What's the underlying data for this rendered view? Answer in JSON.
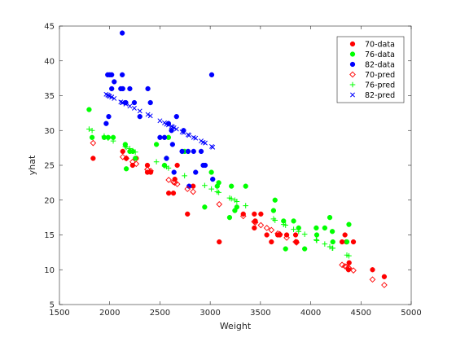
{
  "chart_data": {
    "type": "scatter",
    "title": "",
    "xlabel": "Weight",
    "ylabel": "yhat",
    "xlim": [
      1500,
      5000
    ],
    "ylim": [
      5,
      45
    ],
    "xticks": [
      1500,
      2000,
      2500,
      3000,
      3500,
      4000,
      4500,
      5000
    ],
    "yticks": [
      5,
      10,
      15,
      20,
      25,
      30,
      35,
      40,
      45
    ],
    "grid": false,
    "legend_placement": "top-right",
    "series": [
      {
        "name": "70-data",
        "marker": "filled-circle",
        "color": "#ff0000",
        "points": [
          [
            1835,
            26
          ],
          [
            2130,
            27
          ],
          [
            2165,
            26
          ],
          [
            2228,
            25
          ],
          [
            2264,
            26
          ],
          [
            2375,
            25
          ],
          [
            2375,
            24
          ],
          [
            2408,
            24
          ],
          [
            2587,
            21
          ],
          [
            2634,
            21
          ],
          [
            2648,
            23
          ],
          [
            2672,
            25
          ],
          [
            2774,
            18
          ],
          [
            2830,
            22
          ],
          [
            3090,
            14
          ],
          [
            3329,
            18
          ],
          [
            3439,
            18
          ],
          [
            3449,
            17
          ],
          [
            3439,
            16
          ],
          [
            3504,
            18
          ],
          [
            3563,
            15
          ],
          [
            3609,
            14
          ],
          [
            3672,
            15
          ],
          [
            3693,
            15
          ],
          [
            3761,
            15
          ],
          [
            3850,
            15
          ],
          [
            3859,
            14
          ],
          [
            4312,
            14
          ],
          [
            4341,
            15
          ],
          [
            4354,
            14
          ],
          [
            4376,
            10
          ],
          [
            4382,
            11
          ],
          [
            4425,
            14
          ],
          [
            4615,
            10
          ],
          [
            4732,
            9
          ]
        ]
      },
      {
        "name": "76-data",
        "marker": "filled-circle",
        "color": "#00ff00",
        "points": [
          [
            1795,
            33
          ],
          [
            1825,
            29
          ],
          [
            1945,
            29
          ],
          [
            1985,
            29
          ],
          [
            2035,
            29
          ],
          [
            2155,
            28
          ],
          [
            2165,
            24.5
          ],
          [
            2200,
            27
          ],
          [
            2230,
            27
          ],
          [
            2255,
            26
          ],
          [
            2465,
            28
          ],
          [
            2545,
            25
          ],
          [
            2565,
            26
          ],
          [
            2585,
            29
          ],
          [
            2745,
            27
          ],
          [
            2945,
            19
          ],
          [
            3012,
            24
          ],
          [
            3070,
            22
          ],
          [
            3085,
            22.5
          ],
          [
            3193,
            17.5
          ],
          [
            3211,
            22
          ],
          [
            3245,
            18.5
          ],
          [
            3265,
            19
          ],
          [
            3353,
            22
          ],
          [
            3630,
            18.5
          ],
          [
            3645,
            20
          ],
          [
            3730,
            17
          ],
          [
            3750,
            13
          ],
          [
            3830,
            17
          ],
          [
            3880,
            16
          ],
          [
            3940,
            13
          ],
          [
            4055,
            16
          ],
          [
            4060,
            15
          ],
          [
            4140,
            16
          ],
          [
            4190,
            17.5
          ],
          [
            4215,
            15.5
          ],
          [
            4220,
            14
          ],
          [
            4360,
            14
          ],
          [
            4380,
            16.5
          ]
        ]
      },
      {
        "name": "82-data",
        "marker": "filled-circle",
        "color": "#0000ff",
        "points": [
          [
            1965,
            31
          ],
          [
            1980,
            38
          ],
          [
            1990,
            32
          ],
          [
            2000,
            38
          ],
          [
            2020,
            36
          ],
          [
            2020,
            38
          ],
          [
            2045,
            37
          ],
          [
            2110,
            36
          ],
          [
            2125,
            38
          ],
          [
            2125,
            44
          ],
          [
            2130,
            36
          ],
          [
            2160,
            34
          ],
          [
            2200,
            36
          ],
          [
            2245,
            34
          ],
          [
            2300,
            32
          ],
          [
            2380,
            36
          ],
          [
            2405,
            34
          ],
          [
            2500,
            29
          ],
          [
            2545,
            29
          ],
          [
            2565,
            26
          ],
          [
            2585,
            31
          ],
          [
            2615,
            30
          ],
          [
            2625,
            28
          ],
          [
            2640,
            24
          ],
          [
            2665,
            32
          ],
          [
            2720,
            27
          ],
          [
            2735,
            30
          ],
          [
            2780,
            27
          ],
          [
            2790,
            22
          ],
          [
            2835,
            27
          ],
          [
            2855,
            24
          ],
          [
            2910,
            27
          ],
          [
            2930,
            25
          ],
          [
            2950,
            25
          ],
          [
            3015,
            38
          ],
          [
            3025,
            23
          ]
        ]
      },
      {
        "name": "70-pred",
        "marker": "open-diamond",
        "color": "#ff0000",
        "points": [
          [
            1835,
            28.2
          ],
          [
            2130,
            26.2
          ],
          [
            2165,
            26.0
          ],
          [
            2228,
            25.5
          ],
          [
            2264,
            25.2
          ],
          [
            2375,
            24.4
          ],
          [
            2375,
            24.4
          ],
          [
            2408,
            24.2
          ],
          [
            2587,
            22.9
          ],
          [
            2634,
            22.6
          ],
          [
            2648,
            22.5
          ],
          [
            2672,
            22.3
          ],
          [
            2774,
            21.6
          ],
          [
            2830,
            21.2
          ],
          [
            3090,
            19.4
          ],
          [
            3329,
            17.7
          ],
          [
            3439,
            16.9
          ],
          [
            3449,
            16.8
          ],
          [
            3439,
            16.9
          ],
          [
            3504,
            16.4
          ],
          [
            3563,
            16.0
          ],
          [
            3609,
            15.7
          ],
          [
            3672,
            15.2
          ],
          [
            3693,
            15.1
          ],
          [
            3761,
            14.6
          ],
          [
            3850,
            14.0
          ],
          [
            3859,
            13.9
          ],
          [
            4312,
            10.7
          ],
          [
            4341,
            10.5
          ],
          [
            4354,
            10.4
          ],
          [
            4376,
            10.3
          ],
          [
            4382,
            10.2
          ],
          [
            4425,
            9.9
          ],
          [
            4615,
            8.6
          ],
          [
            4732,
            7.8
          ]
        ]
      },
      {
        "name": "76-pred",
        "marker": "plus",
        "color": "#00ff00",
        "points": [
          [
            1795,
            30.2
          ],
          [
            1825,
            30.0
          ],
          [
            1945,
            29.2
          ],
          [
            1985,
            28.9
          ],
          [
            2035,
            28.5
          ],
          [
            2155,
            27.7
          ],
          [
            2165,
            27.6
          ],
          [
            2200,
            27.4
          ],
          [
            2230,
            27.1
          ],
          [
            2255,
            26.9
          ],
          [
            2465,
            25.5
          ],
          [
            2545,
            24.9
          ],
          [
            2565,
            24.8
          ],
          [
            2585,
            24.6
          ],
          [
            2745,
            23.5
          ],
          [
            2945,
            22.1
          ],
          [
            3012,
            21.6
          ],
          [
            3070,
            21.2
          ],
          [
            3085,
            21.1
          ],
          [
            3193,
            20.3
          ],
          [
            3211,
            20.2
          ],
          [
            3245,
            20.0
          ],
          [
            3265,
            19.8
          ],
          [
            3353,
            19.2
          ],
          [
            3630,
            17.3
          ],
          [
            3645,
            17.1
          ],
          [
            3730,
            16.5
          ],
          [
            3750,
            16.4
          ],
          [
            3830,
            15.8
          ],
          [
            3880,
            15.5
          ],
          [
            3940,
            15.1
          ],
          [
            4055,
            14.3
          ],
          [
            4060,
            14.2
          ],
          [
            4140,
            13.7
          ],
          [
            4190,
            13.3
          ],
          [
            4215,
            13.1
          ],
          [
            4220,
            13.1
          ],
          [
            4360,
            12.1
          ],
          [
            4380,
            12.0
          ]
        ]
      },
      {
        "name": "82-pred",
        "marker": "x",
        "color": "#0000ff",
        "points": [
          [
            1965,
            35.2
          ],
          [
            1980,
            35.1
          ],
          [
            1990,
            35.0
          ],
          [
            2000,
            34.9
          ],
          [
            2020,
            34.8
          ],
          [
            2020,
            34.8
          ],
          [
            2045,
            34.6
          ],
          [
            2110,
            34.1
          ],
          [
            2125,
            34.0
          ],
          [
            2125,
            34.0
          ],
          [
            2130,
            34.0
          ],
          [
            2160,
            33.8
          ],
          [
            2200,
            33.5
          ],
          [
            2245,
            33.2
          ],
          [
            2300,
            32.8
          ],
          [
            2380,
            32.3
          ],
          [
            2405,
            32.1
          ],
          [
            2500,
            31.4
          ],
          [
            2545,
            31.1
          ],
          [
            2565,
            30.9
          ],
          [
            2585,
            30.8
          ],
          [
            2615,
            30.6
          ],
          [
            2625,
            30.5
          ],
          [
            2640,
            30.4
          ],
          [
            2665,
            30.2
          ],
          [
            2720,
            29.8
          ],
          [
            2735,
            29.7
          ],
          [
            2780,
            29.4
          ],
          [
            2790,
            29.3
          ],
          [
            2835,
            29.0
          ],
          [
            2855,
            28.9
          ],
          [
            2910,
            28.5
          ],
          [
            2930,
            28.3
          ],
          [
            2950,
            28.2
          ],
          [
            3015,
            27.7
          ],
          [
            3025,
            27.6
          ]
        ]
      }
    ]
  }
}
